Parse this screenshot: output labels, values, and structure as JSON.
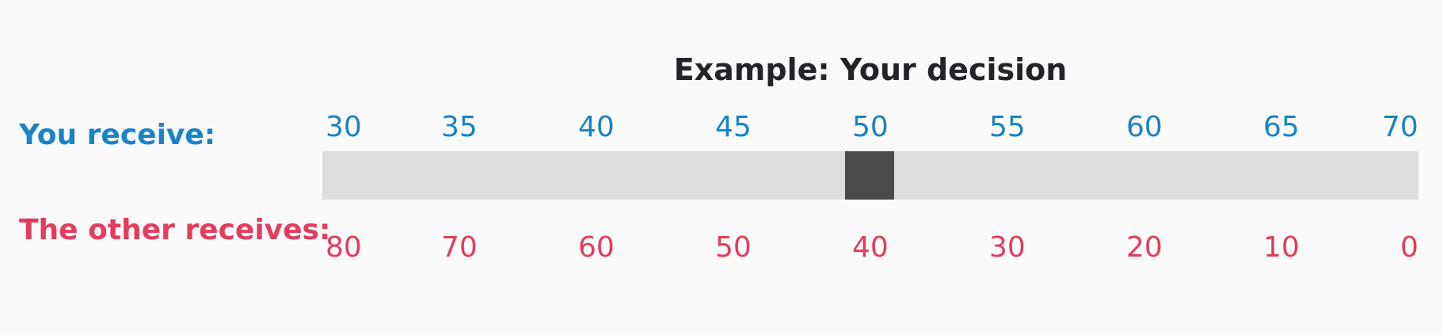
{
  "title": "Example: Your decision",
  "you": {
    "label": "You receive:",
    "color": "#1a83c5",
    "ticks": [
      "30",
      "35",
      "40",
      "45",
      "50",
      "55",
      "60",
      "65",
      "70"
    ]
  },
  "other": {
    "label": "The other receives:",
    "color": "#e23d5c",
    "ticks": [
      "80",
      "70",
      "60",
      "50",
      "40",
      "30",
      "20",
      "10",
      "0"
    ]
  },
  "slider": {
    "min": 30,
    "max": 70,
    "value": 50,
    "track_color": "#dedede",
    "thumb_color": "#4a4a4a"
  }
}
